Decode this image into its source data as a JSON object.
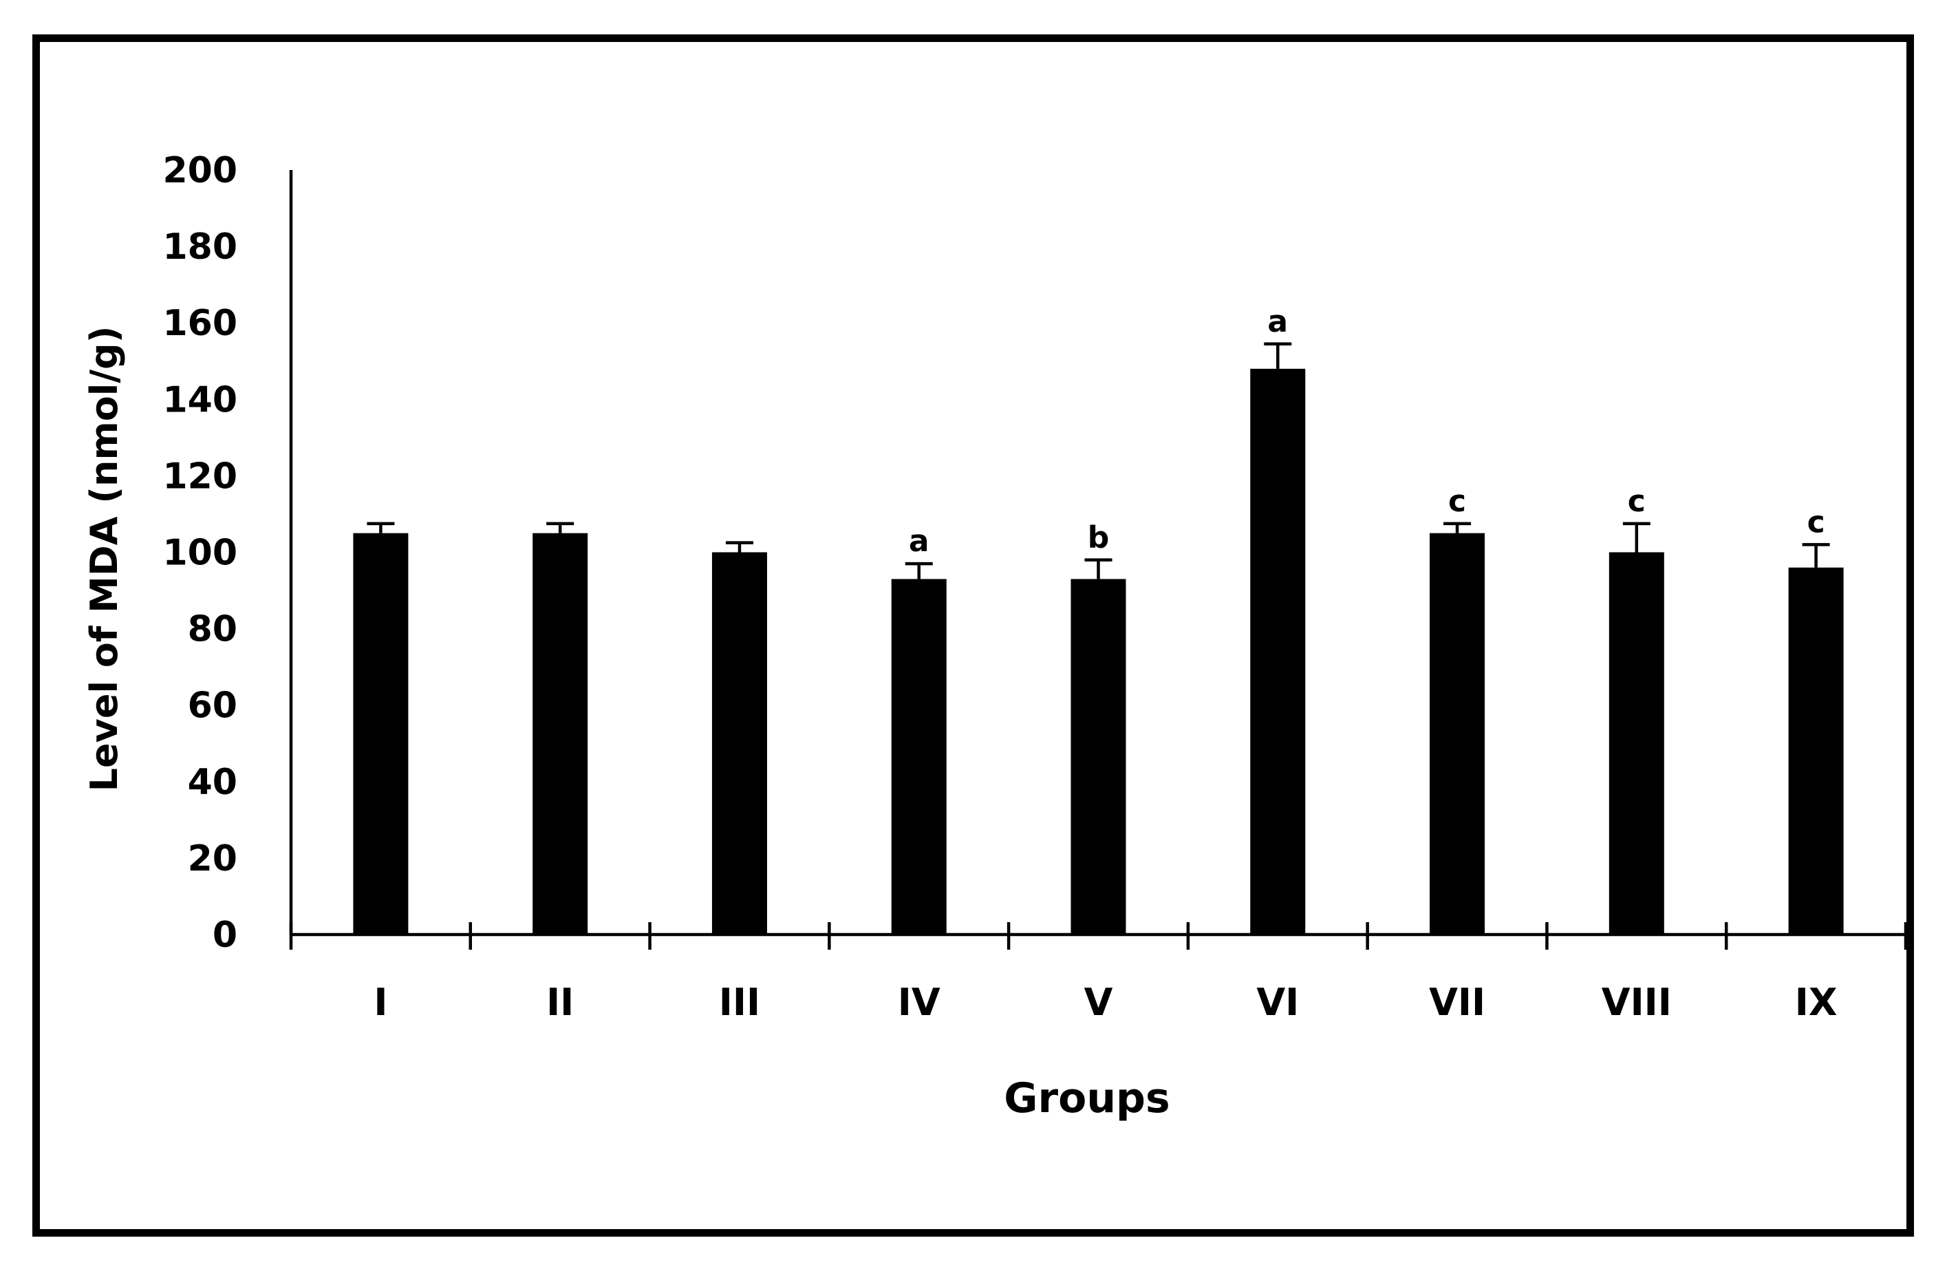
{
  "chart_data": {
    "type": "bar",
    "title": "",
    "xlabel": "Groups",
    "ylabel": "Level of MDA (nmol/g)",
    "ylim": [
      0,
      200
    ],
    "yticks": [
      0,
      20,
      40,
      60,
      80,
      100,
      120,
      140,
      160,
      180,
      200
    ],
    "yticks_labels": [
      "0",
      "20",
      "40",
      "60",
      "80",
      "100",
      "120",
      "140",
      "160",
      "180",
      "200"
    ],
    "grid": false,
    "legend": "none",
    "categories": [
      "I",
      "II",
      "III",
      "IV",
      "V",
      "VI",
      "VII",
      "VIII",
      "IX"
    ],
    "values": [
      105,
      105,
      100,
      93,
      93,
      148,
      105,
      100,
      96
    ],
    "errors": [
      2.5,
      2.5,
      2.5,
      4,
      5,
      6.5,
      2.5,
      7.5,
      6
    ],
    "annotations": [
      "",
      "",
      "",
      "a",
      "b",
      "a",
      "c",
      "c",
      "c"
    ],
    "bar_color": "#000000"
  }
}
